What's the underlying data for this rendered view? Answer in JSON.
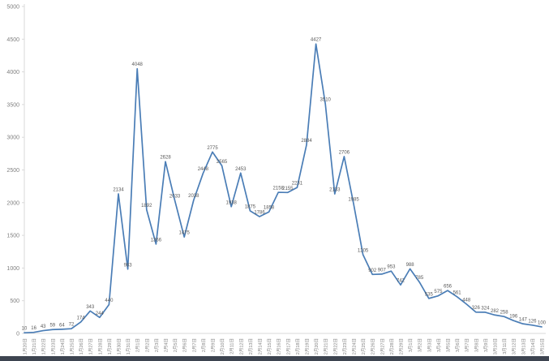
{
  "chart_data": {
    "type": "line",
    "title": "",
    "xlabel": "",
    "ylabel": "",
    "legend": "none",
    "grid": false,
    "ylim": [
      0,
      5000
    ],
    "ytick_step": 500,
    "yticks": [
      0,
      500,
      1000,
      1500,
      2000,
      2500,
      3000,
      3500,
      4000,
      4500,
      5000
    ],
    "line_color": "#4a7db6",
    "data_label_color": "#595959",
    "axis_label_color": "#7f7f7f",
    "axis_line_color": "#d9d9d9",
    "categories": [
      "1月20日",
      "1月21日",
      "1月22日",
      "1月23日",
      "1月24日",
      "1月25日",
      "1月26日",
      "1月27日",
      "1月28日",
      "1月29日",
      "1月30日",
      "1月31日",
      "2月1日",
      "2月2日",
      "2月3日",
      "2月4日",
      "2月5日",
      "2月6日",
      "2月7日",
      "2月8日",
      "2月9日",
      "2月10日",
      "2月11日",
      "2月12日",
      "2月13日",
      "2月14日",
      "2月15日",
      "2月16日",
      "2月17日",
      "2月18日",
      "2月19日",
      "2月20日",
      "2月21日",
      "2月22日",
      "2月23日",
      "2月24日",
      "2月25日",
      "2月26日",
      "2月27日",
      "2月28日",
      "2月29日",
      "3月1日",
      "3月2日",
      "3月3日",
      "3月4日",
      "3月5日",
      "3月6日",
      "3月7日",
      "3月8日",
      "3月9日",
      "3月10日",
      "3月11日",
      "3月12日",
      "3月13日",
      "3月14日",
      "3月15日"
    ],
    "values": [
      10,
      16,
      43,
      59,
      64,
      72,
      174,
      343,
      244,
      440,
      2134,
      983,
      4048,
      1892,
      1366,
      2628,
      2033,
      1475,
      2038,
      2448,
      2775,
      2565,
      1938,
      2453,
      1875,
      1786,
      1858,
      2158,
      2155,
      2231,
      2884,
      4427,
      3510,
      2133,
      2706,
      1985,
      1205,
      902,
      907,
      953,
      742,
      988,
      785,
      535,
      575,
      656,
      561,
      448,
      326,
      324,
      282,
      258,
      196,
      147,
      126,
      100
    ]
  },
  "page": {
    "background": "#ffffff",
    "bottom_bar_color": "#3d4450"
  }
}
